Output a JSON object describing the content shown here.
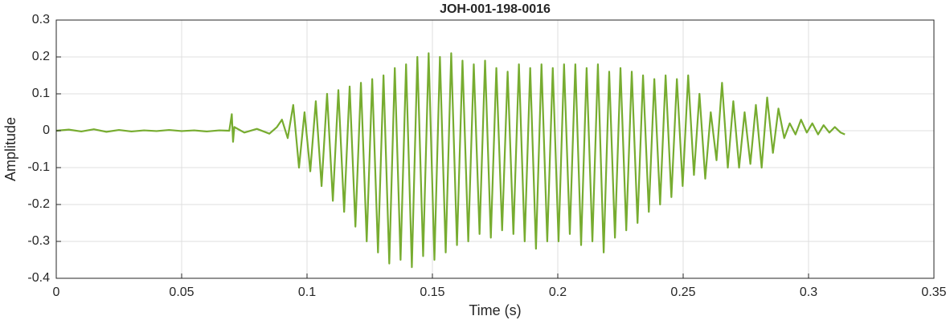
{
  "chart_data": {
    "type": "line",
    "title": "JOH-001-198-0016",
    "xlabel": "Time (s)",
    "ylabel": "Amplitude",
    "xlim": [
      0,
      0.35
    ],
    "xticks": [
      0,
      0.05,
      0.1,
      0.15,
      0.2,
      0.25,
      0.3,
      0.35
    ],
    "ylim": [
      -0.4,
      0.3
    ],
    "yticks": [
      -0.4,
      -0.3,
      -0.2,
      -0.1,
      0,
      0.1,
      0.2,
      0.3
    ],
    "grid": true,
    "series": [
      {
        "name": "JOH-001-198-0016",
        "color": "#77ac30",
        "x": [
          0,
          0.005,
          0.01,
          0.015,
          0.02,
          0.025,
          0.03,
          0.035,
          0.04,
          0.045,
          0.05,
          0.055,
          0.06,
          0.065,
          0.069,
          0.07,
          0.0705,
          0.071,
          0.075,
          0.08,
          0.085,
          0.088,
          0.09,
          0.0923,
          0.0945,
          0.0968,
          0.099,
          0.1013,
          0.1035,
          0.1058,
          0.108,
          0.1103,
          0.1125,
          0.1148,
          0.117,
          0.1193,
          0.1215,
          0.1238,
          0.126,
          0.1283,
          0.1305,
          0.1328,
          0.135,
          0.1373,
          0.1395,
          0.1418,
          0.144,
          0.1463,
          0.1485,
          0.1508,
          0.153,
          0.1553,
          0.1575,
          0.1598,
          0.162,
          0.1643,
          0.1665,
          0.1688,
          0.171,
          0.1733,
          0.1755,
          0.1778,
          0.18,
          0.1823,
          0.1845,
          0.1868,
          0.189,
          0.1913,
          0.1935,
          0.1958,
          0.198,
          0.2003,
          0.2025,
          0.2048,
          0.207,
          0.2093,
          0.2115,
          0.2138,
          0.216,
          0.2183,
          0.2205,
          0.2228,
          0.225,
          0.2273,
          0.2295,
          0.2318,
          0.234,
          0.2363,
          0.2385,
          0.2408,
          0.243,
          0.2453,
          0.2475,
          0.2498,
          0.252,
          0.2543,
          0.2565,
          0.2588,
          0.261,
          0.2633,
          0.2655,
          0.2678,
          0.27,
          0.2723,
          0.2745,
          0.2768,
          0.279,
          0.2813,
          0.2835,
          0.2858,
          0.288,
          0.2903,
          0.2925,
          0.2948,
          0.297,
          0.2993,
          0.3015,
          0.3038,
          0.306,
          0.3083,
          0.3105,
          0.3128,
          0.3145
        ],
        "values": [
          0,
          0.003,
          -0.002,
          0.004,
          -0.003,
          0.002,
          -0.002,
          0.001,
          -0.001,
          0.002,
          -0.001,
          0.001,
          -0.002,
          0.001,
          0,
          0.045,
          -0.03,
          0.01,
          -0.005,
          0.005,
          -0.008,
          0.01,
          0.03,
          -0.02,
          0.07,
          -0.1,
          0.05,
          -0.11,
          0.08,
          -0.15,
          0.1,
          -0.19,
          0.11,
          -0.22,
          0.12,
          -0.26,
          0.13,
          -0.3,
          0.14,
          -0.33,
          0.15,
          -0.36,
          0.17,
          -0.35,
          0.18,
          -0.37,
          0.2,
          -0.34,
          0.21,
          -0.35,
          0.2,
          -0.33,
          0.21,
          -0.31,
          0.19,
          -0.3,
          0.18,
          -0.28,
          0.19,
          -0.29,
          0.17,
          -0.27,
          0.16,
          -0.28,
          0.18,
          -0.3,
          0.17,
          -0.32,
          0.18,
          -0.3,
          0.17,
          -0.3,
          0.18,
          -0.28,
          0.18,
          -0.31,
          0.17,
          -0.3,
          0.18,
          -0.33,
          0.16,
          -0.29,
          0.17,
          -0.27,
          0.16,
          -0.25,
          0.15,
          -0.22,
          0.14,
          -0.2,
          0.15,
          -0.18,
          0.14,
          -0.15,
          0.15,
          -0.12,
          0.1,
          -0.13,
          0.05,
          -0.08,
          0.13,
          -0.1,
          0.08,
          -0.1,
          0.05,
          -0.09,
          0.07,
          -0.1,
          0.09,
          -0.06,
          0.06,
          -0.02,
          0.02,
          -0.01,
          0.03,
          -0.005,
          0.02,
          -0.01,
          0.015,
          -0.005,
          0.01,
          -0.005,
          -0.01
        ]
      }
    ]
  }
}
